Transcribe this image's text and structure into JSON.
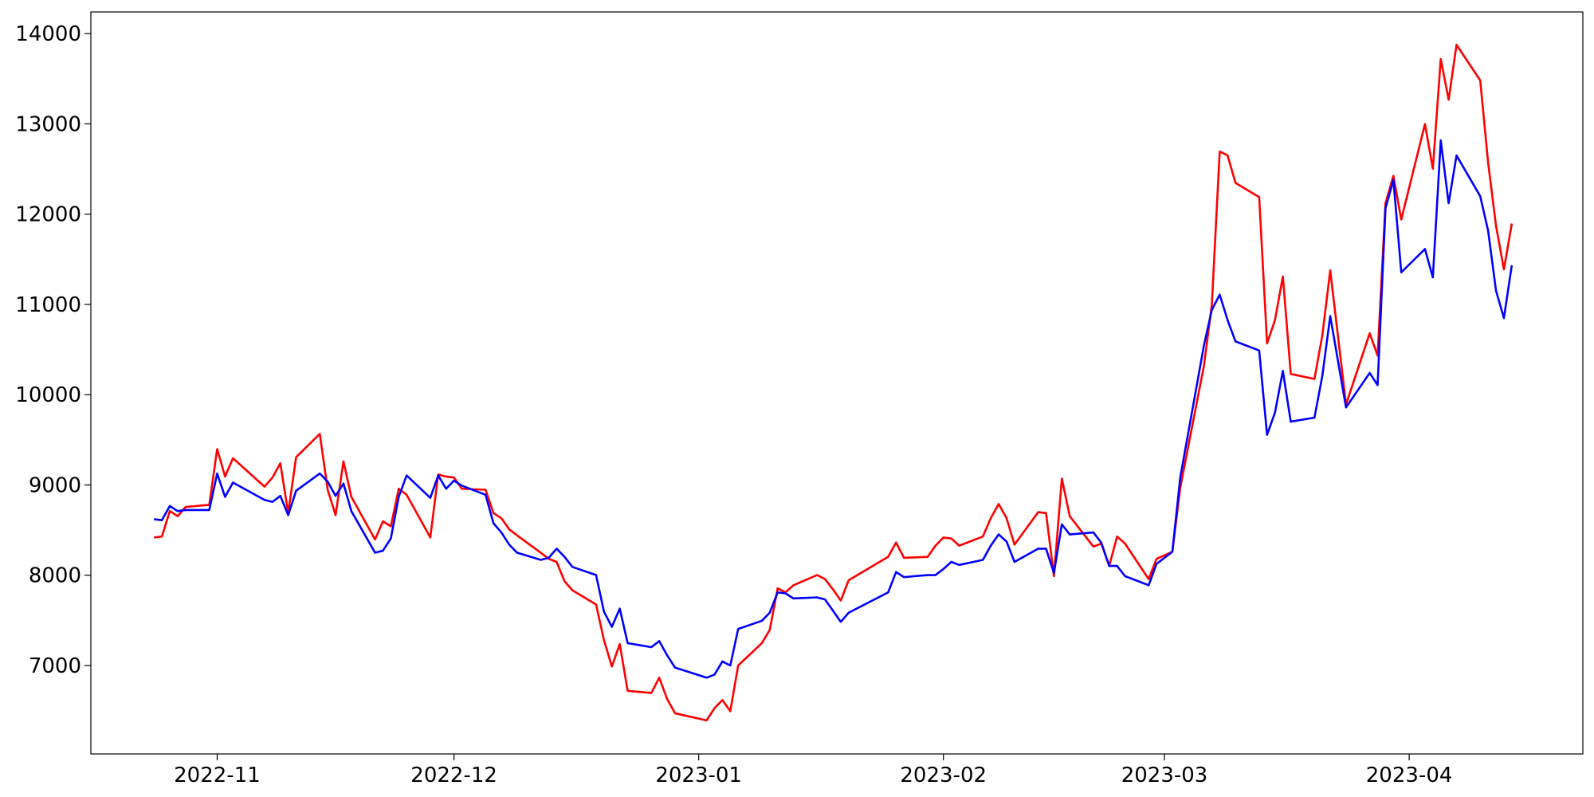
{
  "chart_data": {
    "type": "line",
    "x": [
      "2022-10-24",
      "2022-10-25",
      "2022-10-26",
      "2022-10-27",
      "2022-10-28",
      "2022-10-31",
      "2022-11-01",
      "2022-11-02",
      "2022-11-03",
      "2022-11-07",
      "2022-11-08",
      "2022-11-09",
      "2022-11-10",
      "2022-11-11",
      "2022-11-14",
      "2022-11-15",
      "2022-11-16",
      "2022-11-17",
      "2022-11-18",
      "2022-11-21",
      "2022-11-22",
      "2022-11-23",
      "2022-11-24",
      "2022-11-25",
      "2022-11-28",
      "2022-11-29",
      "2022-11-30",
      "2022-12-01",
      "2022-12-02",
      "2022-12-05",
      "2022-12-06",
      "2022-12-07",
      "2022-12-08",
      "2022-12-09",
      "2022-12-12",
      "2022-12-13",
      "2022-12-14",
      "2022-12-15",
      "2022-12-16",
      "2022-12-19",
      "2022-12-20",
      "2022-12-21",
      "2022-12-22",
      "2022-12-23",
      "2022-12-26",
      "2022-12-27",
      "2022-12-28",
      "2022-12-29",
      "2023-01-02",
      "2023-01-03",
      "2023-01-04",
      "2023-01-05",
      "2023-01-06",
      "2023-01-09",
      "2023-01-10",
      "2023-01-11",
      "2023-01-12",
      "2023-01-13",
      "2023-01-16",
      "2023-01-17",
      "2023-01-18",
      "2023-01-19",
      "2023-01-20",
      "2023-01-25",
      "2023-01-26",
      "2023-01-27",
      "2023-01-30",
      "2023-01-31",
      "2023-02-01",
      "2023-02-02",
      "2023-02-03",
      "2023-02-06",
      "2023-02-07",
      "2023-02-08",
      "2023-02-09",
      "2023-02-10",
      "2023-02-13",
      "2023-02-14",
      "2023-02-15",
      "2023-02-16",
      "2023-02-17",
      "2023-02-20",
      "2023-02-21",
      "2023-02-22",
      "2023-02-23",
      "2023-02-24",
      "2023-02-27",
      "2023-02-28",
      "2023-03-02",
      "2023-03-03",
      "2023-03-06",
      "2023-03-07",
      "2023-03-08",
      "2023-03-09",
      "2023-03-10",
      "2023-03-13",
      "2023-03-14",
      "2023-03-15",
      "2023-03-16",
      "2023-03-17",
      "2023-03-20",
      "2023-03-21",
      "2023-03-22",
      "2023-03-24",
      "2023-03-27",
      "2023-03-28",
      "2023-03-29",
      "2023-03-30",
      "2023-03-31",
      "2023-04-03",
      "2023-04-04",
      "2023-04-05",
      "2023-04-06",
      "2023-04-07",
      "2023-04-10",
      "2023-04-11",
      "2023-04-12",
      "2023-04-13",
      "2023-04-14"
    ],
    "series": [
      {
        "color": "#ff0000",
        "values": [
          8418,
          8429,
          8711,
          8654,
          8756,
          8780,
          9397,
          9093,
          9296,
          8981,
          9082,
          9240,
          8688,
          9307,
          9566,
          8947,
          8666,
          9262,
          8868,
          8396,
          8597,
          8542,
          8958,
          8891,
          8418,
          9116,
          9093,
          9082,
          8958,
          8947,
          8688,
          8632,
          8508,
          8441,
          8249,
          8182,
          8148,
          7934,
          7833,
          7675,
          7281,
          6989,
          7237,
          6719,
          6696,
          6865,
          6629,
          6471,
          6392,
          6527,
          6617,
          6494,
          7000,
          7248,
          7394,
          7855,
          7810,
          7889,
          8002,
          7957,
          7844,
          7720,
          7945,
          8204,
          8362,
          8193,
          8204,
          8328,
          8418,
          8407,
          8328,
          8429,
          8632,
          8789,
          8632,
          8339,
          8699,
          8688,
          7990,
          9071,
          8654,
          8317,
          8351,
          8103,
          8429,
          8351,
          7957,
          8182,
          8260,
          8969,
          10320,
          10995,
          12695,
          12650,
          12346,
          12188,
          10568,
          10826,
          11310,
          10230,
          10174,
          10658,
          11377,
          9892,
          10680,
          10433,
          12121,
          12425,
          11941,
          12998,
          12503,
          13719,
          13268,
          13876,
          13482,
          12571,
          11873,
          11389,
          11896
        ]
      },
      {
        "color": "#0000ff",
        "values": [
          8621,
          8610,
          8767,
          8710,
          8722,
          8722,
          9127,
          8868,
          9026,
          8834,
          8812,
          8879,
          8666,
          8936,
          9127,
          9037,
          8879,
          9015,
          8710,
          8249,
          8272,
          8407,
          8868,
          9105,
          8857,
          9105,
          8958,
          9048,
          8992,
          8891,
          8576,
          8474,
          8339,
          8249,
          8170,
          8193,
          8294,
          8204,
          8092,
          8002,
          7596,
          7428,
          7630,
          7248,
          7203,
          7270,
          7113,
          6977,
          6865,
          6899,
          7045,
          7000,
          7405,
          7495,
          7585,
          7810,
          7799,
          7743,
          7754,
          7732,
          7608,
          7484,
          7585,
          7810,
          8035,
          7979,
          8002,
          8002,
          8069,
          8148,
          8114,
          8170,
          8328,
          8452,
          8373,
          8148,
          8294,
          8294,
          8024,
          8564,
          8452,
          8474,
          8361,
          8103,
          8103,
          7990,
          7889,
          8126,
          8260,
          9082,
          10545,
          10939,
          11108,
          10826,
          10590,
          10489,
          9555,
          9802,
          10264,
          9701,
          9746,
          10208,
          10871,
          9859,
          10241,
          10106,
          12064,
          12380,
          11355,
          11614,
          11299,
          12818,
          12121,
          12650,
          12199,
          11817,
          11153,
          10849,
          11434
        ]
      }
    ],
    "xlim": [
      "2022-10-16",
      "2023-04-23"
    ],
    "xticks": [
      {
        "value": "2022-11-01",
        "label": "2022-11"
      },
      {
        "value": "2022-12-01",
        "label": "2022-12"
      },
      {
        "value": "2023-01-01",
        "label": "2023-01"
      },
      {
        "value": "2023-02-01",
        "label": "2023-02"
      },
      {
        "value": "2023-03-01",
        "label": "2023-03"
      },
      {
        "value": "2023-04-01",
        "label": "2023-04"
      }
    ],
    "ylim": [
      6020,
      14240
    ],
    "yticks": [
      7000,
      8000,
      9000,
      10000,
      11000,
      12000,
      13000,
      14000
    ]
  }
}
